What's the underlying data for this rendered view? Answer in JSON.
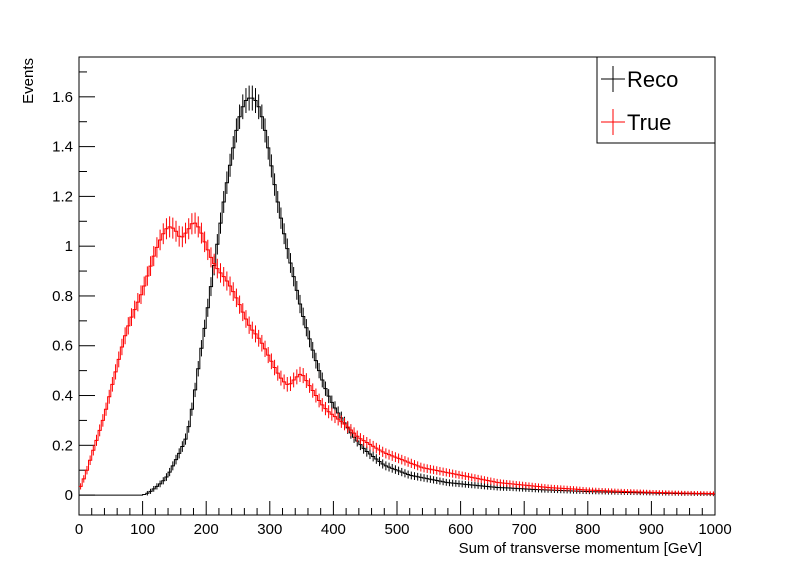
{
  "chart_data": {
    "type": "line",
    "style": "step-histogram-with-error-bars",
    "title": "",
    "xlabel": "Sum of transverse momentum [GeV]",
    "ylabel": "Events",
    "xlim": [
      0,
      1000
    ],
    "ylim": [
      -0.08,
      1.76
    ],
    "x_ticks": [
      0,
      100,
      200,
      300,
      400,
      500,
      600,
      700,
      800,
      900,
      1000
    ],
    "x_tick_labels": [
      "0",
      "100",
      "200",
      "300",
      "400",
      "500",
      "600",
      "700",
      "800",
      "900",
      "1000"
    ],
    "y_ticks": [
      0,
      0.2,
      0.4,
      0.6,
      0.8,
      1,
      1.2,
      1.4,
      1.6
    ],
    "y_tick_labels": [
      "0",
      "0.2",
      "0.4",
      "0.6",
      "0.8",
      "1",
      "1.2",
      "1.4",
      "1.6"
    ],
    "grid": false,
    "legend_position": "top-right",
    "bin_width": 5,
    "series": [
      {
        "name": "Reco",
        "color": "#000000",
        "x": [
          0,
          20,
          40,
          60,
          80,
          100,
          110,
          120,
          130,
          140,
          150,
          160,
          170,
          180,
          190,
          200,
          210,
          220,
          230,
          240,
          250,
          260,
          270,
          280,
          290,
          300,
          310,
          320,
          330,
          340,
          350,
          360,
          370,
          380,
          390,
          400,
          410,
          420,
          430,
          440,
          450,
          460,
          470,
          480,
          490,
          500,
          520,
          540,
          560,
          580,
          600,
          620,
          640,
          660,
          680,
          700,
          720,
          740,
          760,
          780,
          800,
          850,
          900,
          950,
          1000
        ],
        "values": [
          0,
          0,
          0,
          0,
          0,
          0,
          0.01,
          0.03,
          0.05,
          0.08,
          0.13,
          0.18,
          0.24,
          0.38,
          0.55,
          0.71,
          0.88,
          1.05,
          1.22,
          1.36,
          1.5,
          1.58,
          1.6,
          1.58,
          1.5,
          1.36,
          1.21,
          1.08,
          0.96,
          0.85,
          0.74,
          0.65,
          0.56,
          0.48,
          0.41,
          0.36,
          0.32,
          0.28,
          0.24,
          0.21,
          0.18,
          0.16,
          0.14,
          0.12,
          0.11,
          0.1,
          0.08,
          0.07,
          0.06,
          0.05,
          0.045,
          0.04,
          0.035,
          0.03,
          0.028,
          0.025,
          0.022,
          0.02,
          0.018,
          0.016,
          0.014,
          0.011,
          0.008,
          0.006,
          0.004
        ]
      },
      {
        "name": "True",
        "color": "#ff0000",
        "x": [
          0,
          10,
          20,
          30,
          40,
          50,
          60,
          70,
          80,
          90,
          100,
          110,
          120,
          130,
          140,
          150,
          160,
          170,
          180,
          190,
          200,
          210,
          220,
          230,
          240,
          250,
          260,
          270,
          280,
          290,
          300,
          310,
          320,
          330,
          340,
          350,
          360,
          370,
          380,
          390,
          400,
          420,
          440,
          460,
          480,
          500,
          520,
          540,
          560,
          580,
          600,
          620,
          640,
          660,
          680,
          700,
          720,
          740,
          760,
          780,
          800,
          850,
          900,
          950,
          1000
        ],
        "values": [
          0.02,
          0.08,
          0.16,
          0.24,
          0.32,
          0.42,
          0.52,
          0.62,
          0.7,
          0.76,
          0.82,
          0.9,
          0.98,
          1.04,
          1.08,
          1.07,
          1.03,
          1.06,
          1.1,
          1.07,
          1.0,
          0.94,
          0.9,
          0.87,
          0.83,
          0.78,
          0.72,
          0.67,
          0.64,
          0.6,
          0.55,
          0.5,
          0.46,
          0.44,
          0.47,
          0.49,
          0.45,
          0.41,
          0.37,
          0.34,
          0.32,
          0.28,
          0.23,
          0.2,
          0.17,
          0.15,
          0.13,
          0.11,
          0.1,
          0.09,
          0.08,
          0.07,
          0.06,
          0.05,
          0.045,
          0.04,
          0.035,
          0.03,
          0.027,
          0.024,
          0.02,
          0.015,
          0.011,
          0.008,
          0.006
        ]
      }
    ]
  }
}
